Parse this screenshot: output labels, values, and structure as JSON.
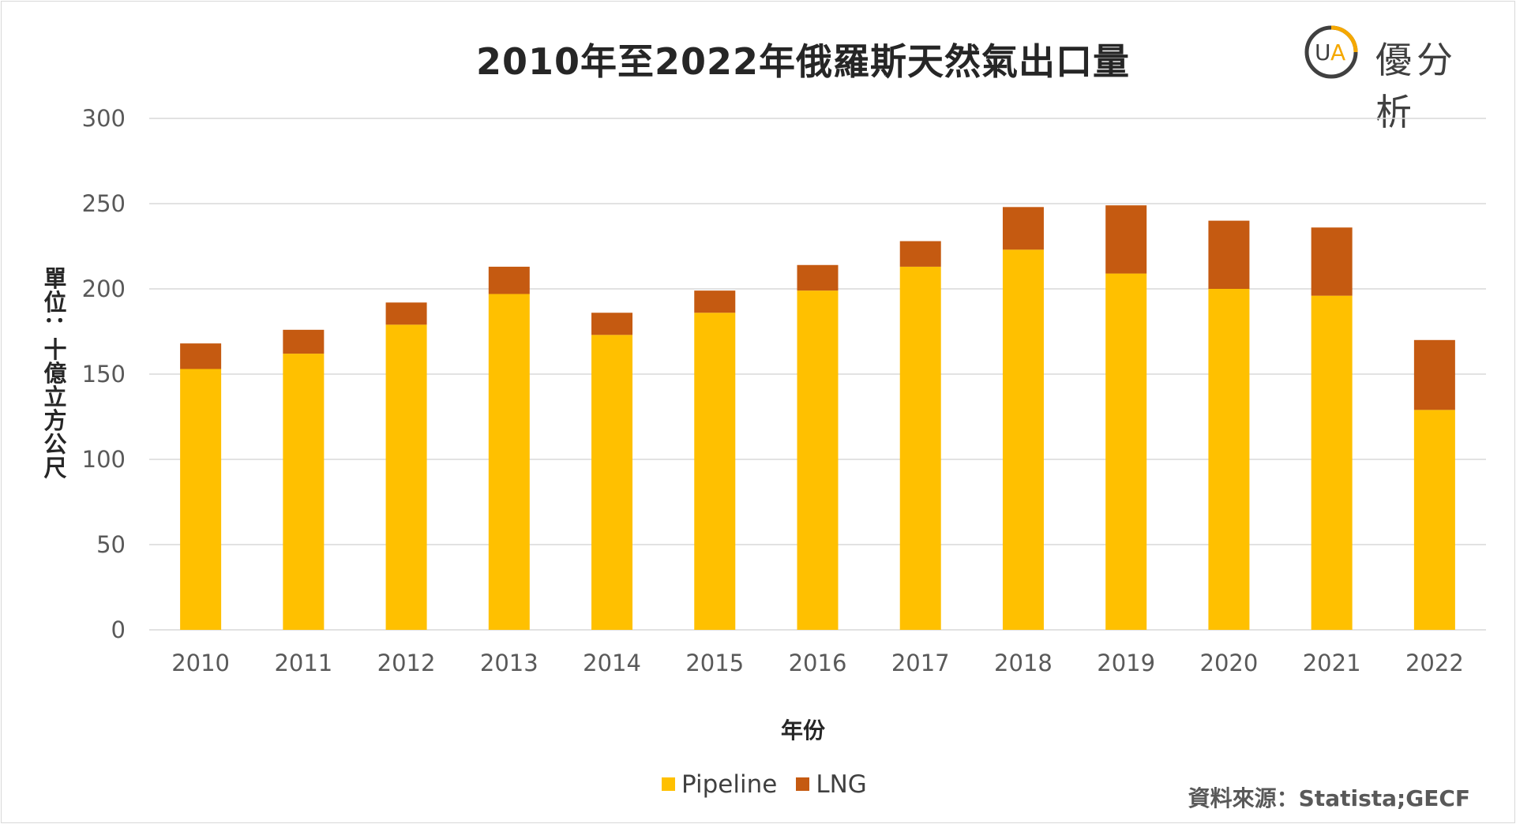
{
  "title": "2010年至2022年俄羅斯天然氣出口量",
  "logo": {
    "text": "優分析",
    "mark": "UA"
  },
  "source": "資料來源：Statista;GECF",
  "chart_data": {
    "type": "bar",
    "stacked": true,
    "title": "2010年至2022年俄羅斯天然氣出口量",
    "xlabel": "年份",
    "ylabel": "單位：十億立方公尺",
    "ylim": [
      0,
      300
    ],
    "yticks": [
      0,
      50,
      100,
      150,
      200,
      250,
      300
    ],
    "grid": true,
    "legend_position": "bottom",
    "categories": [
      "2010",
      "2011",
      "2012",
      "2013",
      "2014",
      "2015",
      "2016",
      "2017",
      "2018",
      "2019",
      "2020",
      "2021",
      "2022"
    ],
    "series": [
      {
        "name": "Pipeline",
        "color": "#ffc000",
        "values": [
          153,
          162,
          179,
          197,
          173,
          186,
          199,
          213,
          223,
          209,
          200,
          196,
          129
        ]
      },
      {
        "name": "LNG",
        "color": "#c55a11",
        "values": [
          15,
          14,
          13,
          16,
          13,
          13,
          15,
          15,
          25,
          40,
          40,
          40,
          41
        ]
      }
    ]
  }
}
